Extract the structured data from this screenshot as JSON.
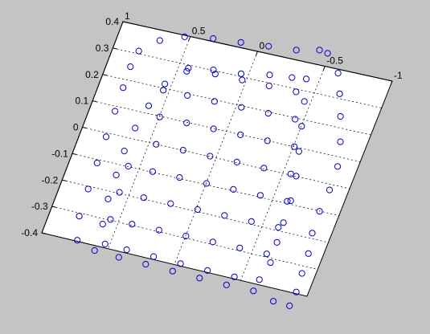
{
  "chart_data": {
    "type": "scatter",
    "projection": "3d",
    "title": "",
    "xlabel": "",
    "ylabel": "",
    "zlabel": "",
    "grid": true,
    "background_color": "#c4c4c4",
    "axes_face_color": "#ffffff",
    "marker": "circle-open",
    "marker_color": "#0000cc",
    "axes": {
      "x": {
        "range": [
          -1,
          1
        ],
        "tick_labels": [
          "1",
          "0.5",
          "0",
          "-0.5",
          "-1"
        ]
      },
      "y": {
        "range": [
          -1,
          1
        ],
        "tick_labels": []
      },
      "z": {
        "range": [
          -0.4,
          0.4
        ],
        "tick_labels": [
          "0.4",
          "0.3",
          "0.2",
          "0.1",
          "0",
          "-0.1",
          "-0.2",
          "-0.3",
          "-0.4"
        ]
      }
    },
    "series": [
      {
        "description": "outer loop",
        "points": [
          [
            -0.52,
            -1.0,
            0.28
          ],
          [
            -0.64,
            -0.86,
            0.25
          ],
          [
            -0.7,
            -0.7,
            0.21
          ],
          [
            -0.76,
            -0.52,
            0.17
          ],
          [
            -0.82,
            -0.32,
            0.12
          ],
          [
            -0.86,
            -0.12,
            0.07
          ],
          [
            -0.86,
            0.08,
            0.02
          ],
          [
            -0.84,
            0.26,
            -0.04
          ],
          [
            -0.84,
            0.44,
            -0.1
          ],
          [
            -0.86,
            0.6,
            -0.16
          ],
          [
            -0.86,
            0.76,
            -0.22
          ],
          [
            -0.86,
            0.9,
            -0.3
          ],
          [
            -0.84,
            1.0,
            -0.38
          ],
          [
            -0.72,
            1.0,
            -0.36
          ],
          [
            -0.56,
            0.96,
            -0.33
          ],
          [
            -0.36,
            0.96,
            -0.33
          ],
          [
            -0.16,
            0.96,
            -0.31
          ],
          [
            0.04,
            0.96,
            -0.29
          ],
          [
            0.24,
            0.96,
            -0.27
          ],
          [
            0.44,
            0.96,
            -0.25
          ],
          [
            0.62,
            0.96,
            -0.22
          ],
          [
            0.76,
            0.92,
            -0.18
          ],
          [
            0.8,
            0.74,
            -0.1
          ],
          [
            0.8,
            0.52,
            -0.02
          ],
          [
            0.8,
            0.3,
            0.04
          ],
          [
            0.8,
            0.08,
            0.1
          ],
          [
            0.8,
            -0.14,
            0.15
          ],
          [
            0.8,
            -0.34,
            0.2
          ],
          [
            0.8,
            -0.52,
            0.24
          ],
          [
            0.78,
            -0.66,
            0.27
          ],
          [
            0.66,
            -0.78,
            0.3
          ],
          [
            0.5,
            -0.86,
            0.3
          ],
          [
            0.3,
            -0.9,
            0.3
          ],
          [
            0.1,
            -0.92,
            0.3
          ],
          [
            -0.1,
            -0.94,
            0.3
          ],
          [
            -0.3,
            -0.96,
            0.3
          ],
          [
            -0.46,
            -1.0,
            0.31
          ]
        ]
      },
      {
        "description": "inner loop",
        "points": [
          [
            -0.44,
            -0.74,
            0.27
          ],
          [
            -0.48,
            -0.56,
            0.22
          ],
          [
            -0.52,
            -0.36,
            0.17
          ],
          [
            -0.56,
            -0.16,
            0.11
          ],
          [
            -0.6,
            0.04,
            0.06
          ],
          [
            -0.62,
            0.24,
            0.0
          ],
          [
            -0.62,
            0.42,
            -0.06
          ],
          [
            -0.62,
            0.58,
            -0.12
          ],
          [
            -0.62,
            0.74,
            -0.19
          ],
          [
            -0.58,
            0.88,
            -0.26
          ],
          [
            -0.4,
            0.9,
            -0.27
          ],
          [
            -0.2,
            0.9,
            -0.26
          ],
          [
            0.0,
            0.9,
            -0.24
          ],
          [
            0.2,
            0.9,
            -0.22
          ],
          [
            0.4,
            0.9,
            -0.2
          ],
          [
            0.56,
            0.9,
            -0.18
          ],
          [
            0.62,
            0.76,
            -0.11
          ],
          [
            0.64,
            0.56,
            -0.04
          ],
          [
            0.64,
            0.36,
            0.02
          ],
          [
            0.64,
            0.16,
            0.08
          ],
          [
            0.62,
            -0.04,
            0.13
          ],
          [
            0.58,
            -0.24,
            0.18
          ],
          [
            0.52,
            -0.44,
            0.23
          ],
          [
            0.4,
            -0.58,
            0.26
          ],
          [
            0.22,
            -0.64,
            0.27
          ],
          [
            0.02,
            -0.66,
            0.27
          ],
          [
            -0.18,
            -0.7,
            0.28
          ],
          [
            -0.34,
            -0.72,
            0.28
          ]
        ]
      },
      {
        "description": "rungs",
        "points": [
          [
            -0.4,
            -0.62,
            0.24
          ],
          [
            -0.2,
            -0.62,
            0.24
          ],
          [
            0.0,
            -0.62,
            0.24
          ],
          [
            0.2,
            -0.62,
            0.24
          ],
          [
            0.4,
            -0.62,
            0.24
          ],
          [
            -0.46,
            -0.4,
            0.19
          ],
          [
            -0.26,
            -0.4,
            0.19
          ],
          [
            -0.06,
            -0.4,
            0.19
          ],
          [
            0.14,
            -0.4,
            0.19
          ],
          [
            0.34,
            -0.4,
            0.19
          ],
          [
            0.52,
            -0.4,
            0.19
          ],
          [
            -0.52,
            -0.18,
            0.14
          ],
          [
            -0.32,
            -0.18,
            0.14
          ],
          [
            -0.12,
            -0.18,
            0.14
          ],
          [
            0.08,
            -0.18,
            0.14
          ],
          [
            0.28,
            -0.18,
            0.14
          ],
          [
            0.48,
            -0.18,
            0.14
          ],
          [
            -0.56,
            0.04,
            0.08
          ],
          [
            -0.36,
            0.04,
            0.08
          ],
          [
            -0.16,
            0.04,
            0.08
          ],
          [
            0.04,
            0.04,
            0.08
          ],
          [
            0.24,
            0.04,
            0.08
          ],
          [
            0.44,
            0.04,
            0.08
          ],
          [
            -0.6,
            0.26,
            0.02
          ],
          [
            -0.4,
            0.26,
            0.02
          ],
          [
            -0.2,
            0.26,
            0.02
          ],
          [
            0.0,
            0.26,
            0.02
          ],
          [
            0.2,
            0.26,
            0.02
          ],
          [
            0.4,
            0.26,
            0.02
          ],
          [
            0.58,
            0.26,
            0.02
          ],
          [
            -0.6,
            0.48,
            -0.04
          ],
          [
            -0.4,
            0.48,
            -0.04
          ],
          [
            -0.2,
            0.48,
            -0.04
          ],
          [
            0.0,
            0.48,
            -0.04
          ],
          [
            0.2,
            0.48,
            -0.04
          ],
          [
            0.4,
            0.48,
            -0.04
          ],
          [
            0.58,
            0.48,
            -0.04
          ],
          [
            -0.58,
            0.7,
            -0.12
          ],
          [
            -0.38,
            0.7,
            -0.12
          ],
          [
            -0.18,
            0.7,
            -0.12
          ],
          [
            0.02,
            0.7,
            -0.12
          ],
          [
            0.22,
            0.7,
            -0.12
          ],
          [
            0.42,
            0.7,
            -0.12
          ],
          [
            0.58,
            0.7,
            -0.12
          ]
        ]
      }
    ]
  }
}
